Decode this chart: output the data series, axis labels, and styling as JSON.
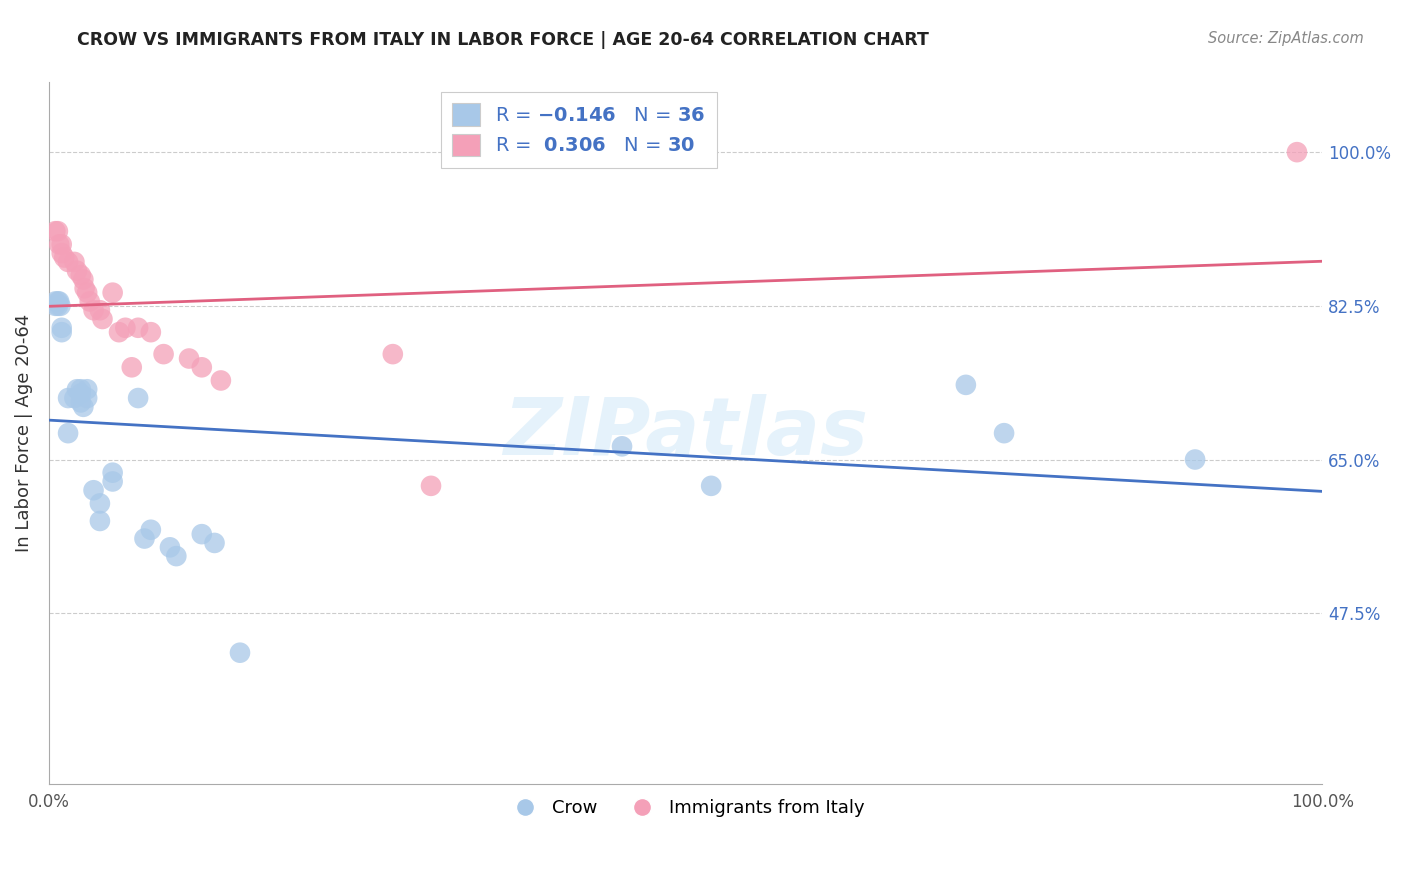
{
  "title": "CROW VS IMMIGRANTS FROM ITALY IN LABOR FORCE | AGE 20-64 CORRELATION CHART",
  "source": "Source: ZipAtlas.com",
  "ylabel": "In Labor Force | Age 20-64",
  "crow_R": -0.146,
  "crow_N": 36,
  "italy_R": 0.306,
  "italy_N": 30,
  "crow_color": "#a8c8e8",
  "crow_line_color": "#4472c4",
  "italy_color": "#f4a0b8",
  "italy_line_color": "#e06080",
  "background_color": "#ffffff",
  "grid_color": "#cccccc",
  "xlim": [
    0.0,
    1.0
  ],
  "ylim": [
    0.28,
    1.08
  ],
  "yticks": [
    0.475,
    0.65,
    0.825,
    1.0
  ],
  "ytick_labels": [
    "47.5%",
    "65.0%",
    "82.5%",
    "100.0%"
  ],
  "xtick_labels": [
    "0.0%",
    "100.0%"
  ],
  "xticks": [
    0.0,
    1.0
  ],
  "crow_x": [
    0.005,
    0.005,
    0.007,
    0.007,
    0.008,
    0.009,
    0.01,
    0.01,
    0.015,
    0.015,
    0.02,
    0.022,
    0.025,
    0.025,
    0.025,
    0.027,
    0.03,
    0.03,
    0.035,
    0.04,
    0.04,
    0.05,
    0.05,
    0.07,
    0.075,
    0.08,
    0.095,
    0.1,
    0.12,
    0.13,
    0.15,
    0.45,
    0.52,
    0.72,
    0.75,
    0.9
  ],
  "crow_y": [
    0.83,
    0.825,
    0.83,
    0.825,
    0.83,
    0.825,
    0.8,
    0.795,
    0.72,
    0.68,
    0.72,
    0.73,
    0.73,
    0.725,
    0.715,
    0.71,
    0.73,
    0.72,
    0.615,
    0.6,
    0.58,
    0.635,
    0.625,
    0.72,
    0.56,
    0.57,
    0.55,
    0.54,
    0.565,
    0.555,
    0.43,
    0.665,
    0.62,
    0.735,
    0.68,
    0.65
  ],
  "italy_x": [
    0.005,
    0.007,
    0.008,
    0.01,
    0.01,
    0.012,
    0.015,
    0.02,
    0.022,
    0.025,
    0.027,
    0.028,
    0.03,
    0.032,
    0.035,
    0.04,
    0.042,
    0.05,
    0.055,
    0.06,
    0.065,
    0.07,
    0.08,
    0.09,
    0.11,
    0.12,
    0.135,
    0.27,
    0.3,
    0.98
  ],
  "italy_y": [
    0.91,
    0.91,
    0.895,
    0.895,
    0.885,
    0.88,
    0.875,
    0.875,
    0.865,
    0.86,
    0.855,
    0.845,
    0.84,
    0.83,
    0.82,
    0.82,
    0.81,
    0.84,
    0.795,
    0.8,
    0.755,
    0.8,
    0.795,
    0.77,
    0.765,
    0.755,
    0.74,
    0.77,
    0.62,
    1.0
  ],
  "watermark": "ZIPatlas"
}
